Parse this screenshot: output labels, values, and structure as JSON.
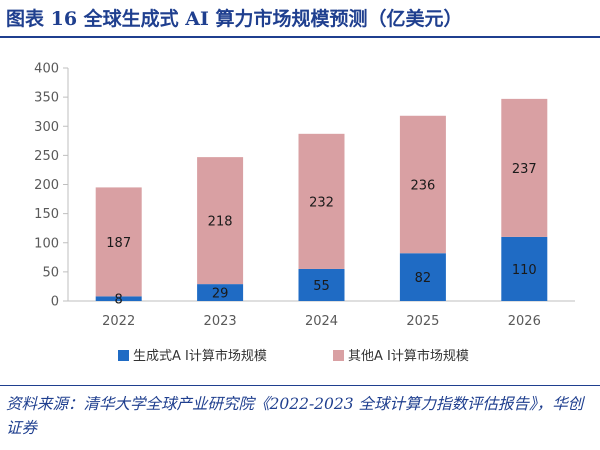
{
  "title": "图表 16  全球生成式 AI 算力市场规模预测（亿美元）",
  "source": "资料来源：清华大学全球产业研究院《2022-2023 全球计算力指数评估报告》，华创证券",
  "colors": {
    "primary": "#1f6bc4",
    "secondary": "#d9a0a3",
    "heading": "#1f3f8f"
  },
  "chart_data": {
    "type": "bar",
    "stacked": true,
    "categories": [
      "2022",
      "2023",
      "2024",
      "2025",
      "2026"
    ],
    "series": [
      {
        "name": "生成式A I计算市场规模",
        "values": [
          8,
          29,
          55,
          82,
          110
        ],
        "color": "#1f6bc4"
      },
      {
        "name": "其他A I计算市场规模",
        "values": [
          187,
          218,
          232,
          236,
          237
        ],
        "color": "#d9a0a3"
      }
    ],
    "ylim": [
      0,
      400
    ],
    "yticks": [
      0,
      50,
      100,
      150,
      200,
      250,
      300,
      350,
      400
    ],
    "legend_position": "bottom"
  }
}
